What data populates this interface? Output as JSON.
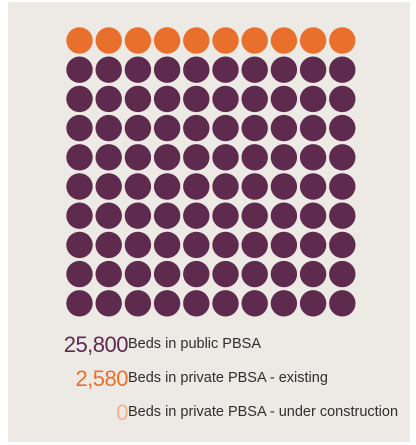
{
  "chart_data": {
    "type": "waffle",
    "grid": {
      "rows": 10,
      "columns": 10
    },
    "series": [
      {
        "name": "Beds in public PBSA",
        "value": 25800,
        "value_label": "25,800",
        "dots": 90,
        "color": "#5e2a4e"
      },
      {
        "name": "Beds in private PBSA - existing",
        "value": 2580,
        "value_label": "2,580",
        "dots": 10,
        "color": "#e8702c"
      },
      {
        "name": "Beds in private PBSA - under construction",
        "value": 0,
        "value_label": "0",
        "dots": 0,
        "color": "#f4b48a"
      }
    ],
    "fill_order": [
      "Beds in private PBSA - existing",
      "Beds in public PBSA"
    ]
  }
}
